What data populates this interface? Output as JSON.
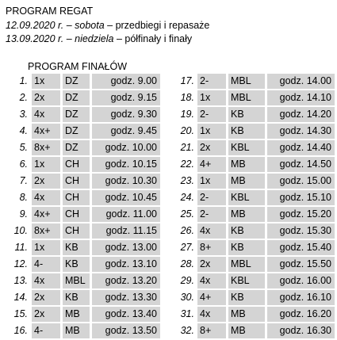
{
  "header": {
    "title": "PROGRAM REGAT",
    "line1": {
      "date": "12.09.2020 r.",
      "sep": " – ",
      "day": "sobota",
      "dash": " – ",
      "text": "przedbiegi i repasaże"
    },
    "line2": {
      "date": "13.09.2020 r.",
      "sep": " – ",
      "day": "niedziela",
      "dash": " – ",
      "text": "półfinały i finały"
    }
  },
  "finals": {
    "title": "PROGRAM FINAŁÓW",
    "left": [
      {
        "num": "1.",
        "boat": "1x",
        "crew": "DZ",
        "time": "godz. 9.00"
      },
      {
        "num": "2.",
        "boat": "2x",
        "crew": "DZ",
        "time": "godz. 9.15"
      },
      {
        "num": "3.",
        "boat": "4x",
        "crew": "DZ",
        "time": "godz. 9.30"
      },
      {
        "num": "4.",
        "boat": "4x+",
        "crew": "DZ",
        "time": "godz. 9.45"
      },
      {
        "num": "5.",
        "boat": "8x+",
        "crew": "DZ",
        "time": "godz. 10.00"
      },
      {
        "num": "6.",
        "boat": "1x",
        "crew": "CH",
        "time": "godz. 10.15"
      },
      {
        "num": "7.",
        "boat": "2x",
        "crew": "CH",
        "time": "godz. 10.30"
      },
      {
        "num": "8.",
        "boat": "4x",
        "crew": "CH",
        "time": "godz. 10.45"
      },
      {
        "num": "9.",
        "boat": "4x+",
        "crew": "CH",
        "time": "godz. 11.00"
      },
      {
        "num": "10.",
        "boat": "8x+",
        "crew": "CH",
        "time": "godz. 11.15"
      },
      {
        "num": "11.",
        "boat": "1x",
        "crew": "KB",
        "time": "godz. 13.00"
      },
      {
        "num": "12.",
        "boat": "4-",
        "crew": "KB",
        "time": "godz. 13.10"
      },
      {
        "num": "13.",
        "boat": "4x",
        "crew": "MBL",
        "time": "godz. 13.20"
      },
      {
        "num": "14.",
        "boat": "2x",
        "crew": "KB",
        "time": "godz. 13.30"
      },
      {
        "num": "15.",
        "boat": "2x",
        "crew": "MB",
        "time": "godz. 13.40"
      },
      {
        "num": "16.",
        "boat": "4-",
        "crew": "MB",
        "time": "godz. 13.50"
      }
    ],
    "right": [
      {
        "num": "17.",
        "boat": "2-",
        "crew": "MBL",
        "time": "godz. 14.00"
      },
      {
        "num": "18.",
        "boat": "1x",
        "crew": "MBL",
        "time": "godz. 14.10"
      },
      {
        "num": "19.",
        "boat": "2-",
        "crew": "KB",
        "time": "godz. 14.20"
      },
      {
        "num": "20.",
        "boat": "1x",
        "crew": "KB",
        "time": "godz. 14.30"
      },
      {
        "num": "21.",
        "boat": "2x",
        "crew": "KBL",
        "time": "godz. 14.40"
      },
      {
        "num": "22.",
        "boat": "4+",
        "crew": "MB",
        "time": "godz. 14.50"
      },
      {
        "num": "23.",
        "boat": "1x",
        "crew": "MB",
        "time": "godz. 15.00"
      },
      {
        "num": "24.",
        "boat": "2-",
        "crew": "KBL",
        "time": "godz. 15.10"
      },
      {
        "num": "25.",
        "boat": "2-",
        "crew": "MB",
        "time": "godz. 15.20"
      },
      {
        "num": "26.",
        "boat": "4x",
        "crew": "KB",
        "time": "godz. 15.30"
      },
      {
        "num": "27.",
        "boat": "8+",
        "crew": "KB",
        "time": "godz. 15.40"
      },
      {
        "num": "28.",
        "boat": "2x",
        "crew": "MBL",
        "time": "godz. 15.50"
      },
      {
        "num": "29.",
        "boat": "4x",
        "crew": "KBL",
        "time": "godz. 16.00"
      },
      {
        "num": "30.",
        "boat": "4+",
        "crew": "KB",
        "time": "godz. 16.10"
      },
      {
        "num": "31.",
        "boat": "4x",
        "crew": "MB",
        "time": "godz. 16.20"
      },
      {
        "num": "32.",
        "boat": "8+",
        "crew": "MB",
        "time": "godz. 16.30"
      }
    ]
  },
  "colors": {
    "cell_shade": "#d4d4d4",
    "text": "#000000",
    "background": "#ffffff"
  }
}
